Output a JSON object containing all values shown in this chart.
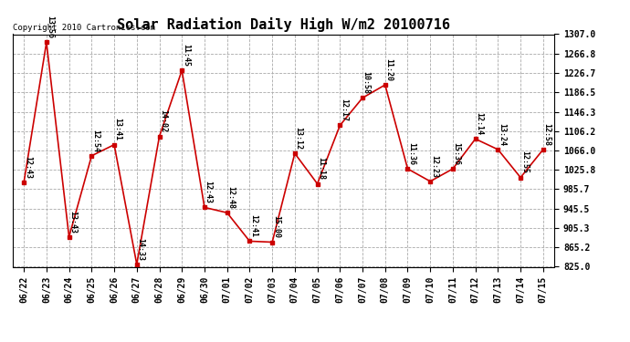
{
  "title": "Solar Radiation Daily High W/m2 20100716",
  "copyright": "Copyright 2010 Cartronics.com",
  "dates": [
    "06/22",
    "06/23",
    "06/24",
    "06/25",
    "06/26",
    "06/27",
    "06/28",
    "06/29",
    "06/30",
    "07/01",
    "07/02",
    "07/03",
    "07/04",
    "07/05",
    "07/06",
    "07/07",
    "07/08",
    "07/09",
    "07/10",
    "07/11",
    "07/12",
    "07/13",
    "07/14",
    "07/15"
  ],
  "values": [
    1000,
    1290,
    887,
    1055,
    1078,
    830,
    1095,
    1232,
    948,
    937,
    878,
    876,
    1060,
    997,
    1118,
    1175,
    1202,
    1028,
    1002,
    1028,
    1090,
    1068,
    1010,
    1068
  ],
  "labels": [
    "12:43",
    "13:56",
    "13:43",
    "12:54",
    "13:41",
    "14:33",
    "14:02",
    "11:45",
    "12:43",
    "12:48",
    "12:41",
    "15:00",
    "13:12",
    "11:18",
    "12:17",
    "10:58",
    "11:20",
    "11:36",
    "12:23",
    "15:36",
    "12:14",
    "13:24",
    "12:55",
    "12:58"
  ],
  "line_color": "#cc0000",
  "marker_color": "#cc0000",
  "bg_color": "#ffffff",
  "grid_color": "#aaaaaa",
  "ymin": 825.0,
  "ymax": 1307.0,
  "yticks": [
    825.0,
    865.2,
    905.3,
    945.5,
    985.7,
    1025.8,
    1066.0,
    1106.2,
    1146.3,
    1186.5,
    1226.7,
    1266.8,
    1307.0
  ],
  "title_fontsize": 11,
  "label_fontsize": 6,
  "tick_fontsize": 7,
  "copyright_fontsize": 6.5
}
